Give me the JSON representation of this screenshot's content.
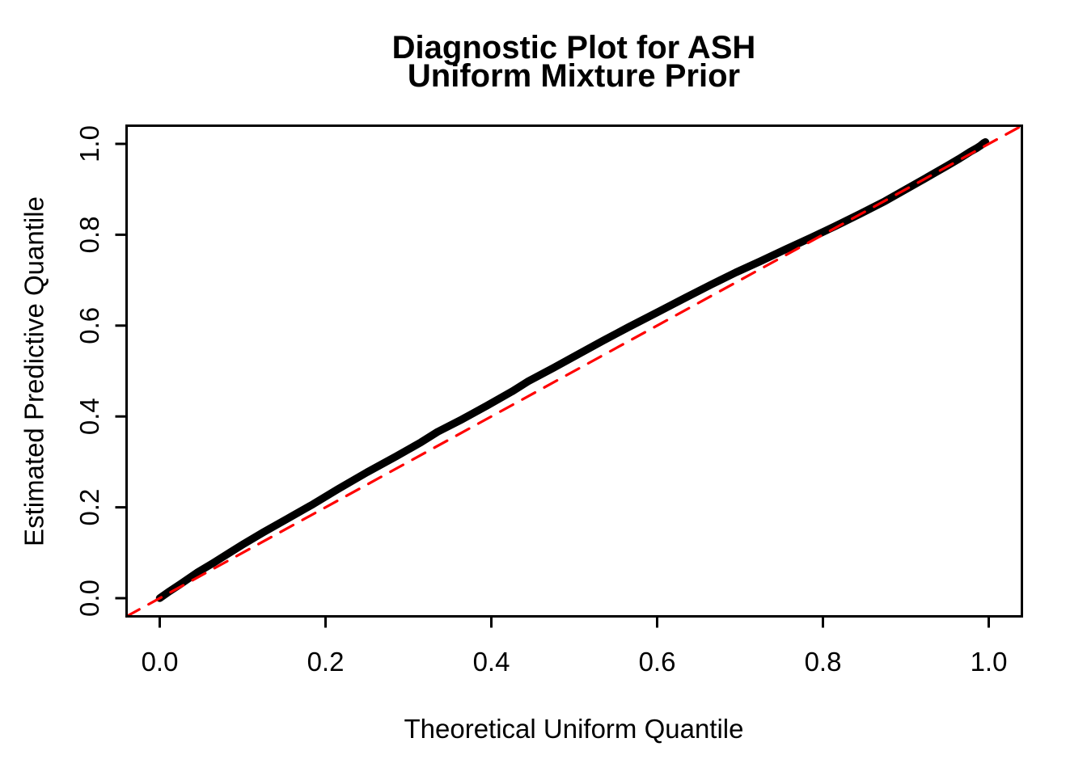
{
  "window": {
    "background": "#FFFFFF"
  },
  "chart_data": {
    "type": "line",
    "title": "Diagnostic Plot for ASH\nUniform Mixture Prior",
    "title_line1": "Diagnostic Plot for ASH",
    "title_line2": "Uniform Mixture Prior",
    "xlabel": "Theoretical Uniform Quantile",
    "ylabel": "Estimated Predictive Quantile",
    "xlim": [
      -0.04,
      1.04
    ],
    "ylim": [
      -0.04,
      1.04
    ],
    "grid": false,
    "legend": "none",
    "frame": true,
    "axis_color": "#000000",
    "text_color": "#000000",
    "background_color": "#FFFFFF",
    "x_ticks": {
      "values": [
        0,
        0.2,
        0.4,
        0.6,
        0.8,
        1.0
      ],
      "labels": [
        "0.0",
        "0.2",
        "0.4",
        "0.6",
        "0.8",
        "1.0"
      ]
    },
    "y_ticks": {
      "values": [
        0,
        0.2,
        0.4,
        0.6,
        0.8,
        1.0
      ],
      "labels": [
        "0.0",
        "0.2",
        "0.4",
        "0.6",
        "0.8",
        "1.0"
      ]
    },
    "series": [
      {
        "name": "estimated-predictive-quantile-curve",
        "label": "Estimated vs Theoretical quantile (ASH uniform mixture prior)",
        "color": "#000000",
        "line_width": 9.5,
        "dash": null,
        "points": [
          [
            0.0,
            0.0
          ],
          [
            0.01,
            0.013
          ],
          [
            0.025,
            0.031
          ],
          [
            0.045,
            0.056
          ],
          [
            0.065,
            0.078
          ],
          [
            0.085,
            0.101
          ],
          [
            0.1,
            0.118
          ],
          [
            0.125,
            0.145
          ],
          [
            0.155,
            0.176
          ],
          [
            0.185,
            0.207
          ],
          [
            0.215,
            0.24
          ],
          [
            0.25,
            0.277
          ],
          [
            0.285,
            0.312
          ],
          [
            0.315,
            0.343
          ],
          [
            0.335,
            0.366
          ],
          [
            0.365,
            0.394
          ],
          [
            0.395,
            0.424
          ],
          [
            0.425,
            0.455
          ],
          [
            0.445,
            0.478
          ],
          [
            0.475,
            0.507
          ],
          [
            0.505,
            0.537
          ],
          [
            0.535,
            0.567
          ],
          [
            0.565,
            0.596
          ],
          [
            0.6,
            0.629
          ],
          [
            0.635,
            0.662
          ],
          [
            0.665,
            0.69
          ],
          [
            0.695,
            0.717
          ],
          [
            0.725,
            0.742
          ],
          [
            0.755,
            0.768
          ],
          [
            0.785,
            0.793
          ],
          [
            0.815,
            0.819
          ],
          [
            0.845,
            0.846
          ],
          [
            0.875,
            0.874
          ],
          [
            0.905,
            0.905
          ],
          [
            0.93,
            0.931
          ],
          [
            0.95,
            0.952
          ],
          [
            0.965,
            0.968
          ],
          [
            0.978,
            0.983
          ],
          [
            0.985,
            0.99
          ],
          [
            0.99,
            0.996
          ],
          [
            0.994,
            1.002
          ],
          [
            0.996,
            1.004
          ]
        ]
      },
      {
        "name": "identity-reference-line",
        "label": "y = x reference",
        "color": "#FF0000",
        "line_width": 3.2,
        "dash": [
          18,
          13
        ],
        "points": [
          [
            -0.04,
            -0.04
          ],
          [
            1.04,
            1.04
          ]
        ]
      }
    ]
  }
}
